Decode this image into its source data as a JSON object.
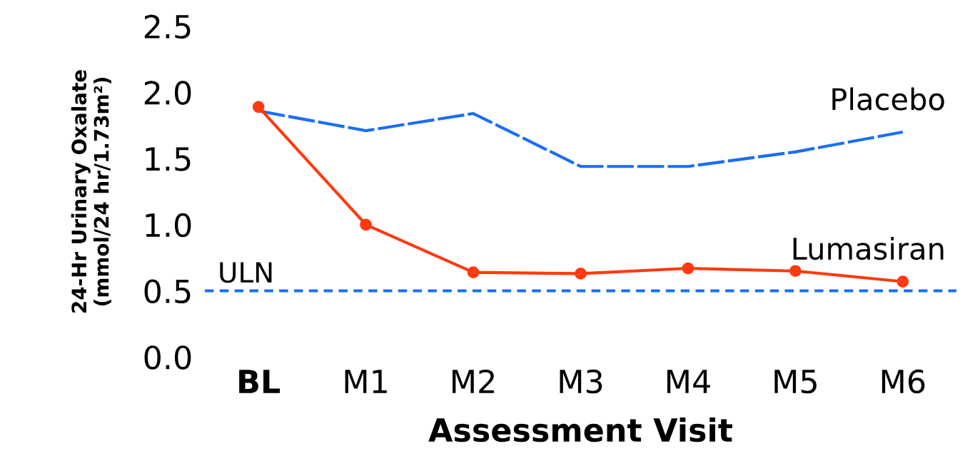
{
  "chart_data": {
    "type": "line",
    "xlabel": "Assessment Visit",
    "ylabel": "24-Hr Urinary Oxalate\n(mmol/24 hr/1.73m²)",
    "categories": [
      "BL",
      "M1",
      "M2",
      "M3",
      "M4",
      "M5",
      "M6"
    ],
    "series": [
      {
        "name": "Placebo",
        "color": "#1a6ef5",
        "line_style": "dashed",
        "marker": "none",
        "values": [
          1.86,
          1.71,
          1.84,
          1.44,
          1.44,
          1.55,
          1.7
        ]
      },
      {
        "name": "Lumasiran",
        "color": "#ff3a10",
        "line_style": "solid",
        "marker": "circle",
        "values": [
          1.89,
          1.0,
          0.64,
          0.63,
          0.67,
          0.65,
          0.57
        ]
      }
    ],
    "ylim": [
      0,
      2.5
    ],
    "yticks": [
      {
        "value": 0,
        "label": "0.0"
      },
      {
        "value": 0.5,
        "label": "0.5"
      },
      {
        "value": 1.0,
        "label": "1.0"
      },
      {
        "value": 1.5,
        "label": "1.5"
      },
      {
        "value": 2.0,
        "label": "2.0"
      },
      {
        "value": 2.5,
        "label": "2.5"
      }
    ],
    "ref_lines": [
      {
        "axis": "y",
        "value": 0.5,
        "label": "ULN",
        "color": "#1a6ef5",
        "line_style": "dashed"
      }
    ],
    "grid": false,
    "legend": false
  }
}
